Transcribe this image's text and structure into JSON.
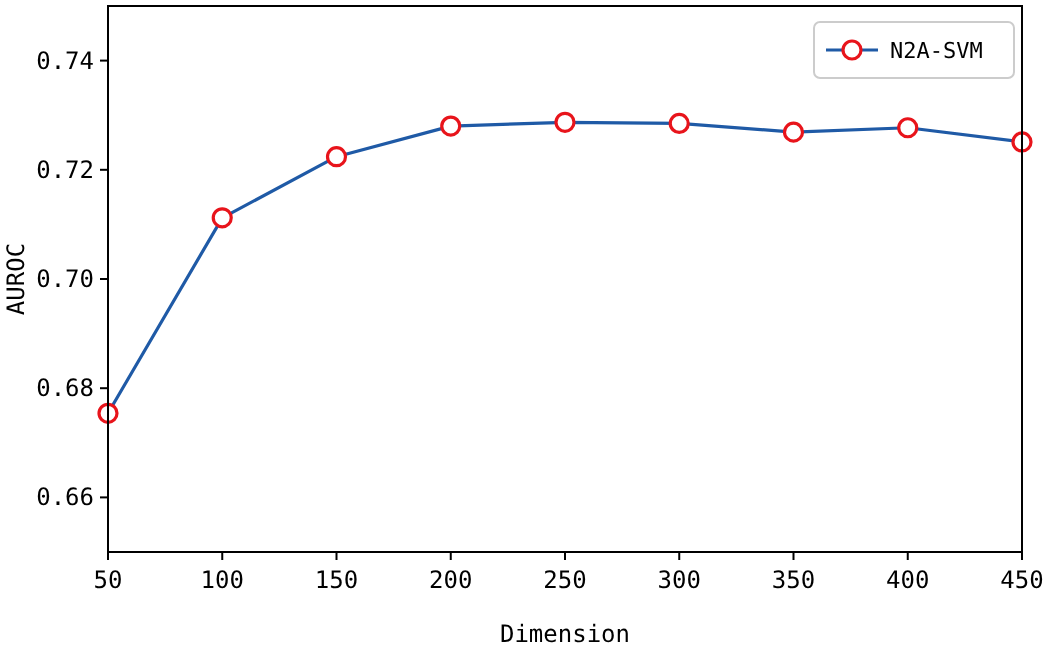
{
  "chart_data": {
    "type": "line",
    "xlabel": "Dimension",
    "ylabel": "AUROC",
    "x": [
      50,
      100,
      150,
      200,
      250,
      300,
      350,
      400,
      450
    ],
    "series": [
      {
        "name": "N2A-SVM",
        "color": "#1f5aa6",
        "values": [
          0.6754,
          0.7112,
          0.7224,
          0.728,
          0.7287,
          0.7285,
          0.7269,
          0.7277,
          0.7251
        ]
      }
    ],
    "xlim": [
      50,
      450
    ],
    "xticks": [
      50,
      100,
      150,
      200,
      250,
      300,
      350,
      400,
      450
    ],
    "ylim": [
      0.65,
      0.75
    ],
    "yticks": [
      {
        "value": 0.66,
        "label": "0.66"
      },
      {
        "value": 0.68,
        "label": "0.68"
      },
      {
        "value": 0.7,
        "label": "0.70"
      },
      {
        "value": 0.72,
        "label": "0.72"
      },
      {
        "value": 0.74,
        "label": "0.74"
      }
    ],
    "legend": "top right",
    "marker": "circle",
    "line_style": "solid",
    "grid": false
  }
}
